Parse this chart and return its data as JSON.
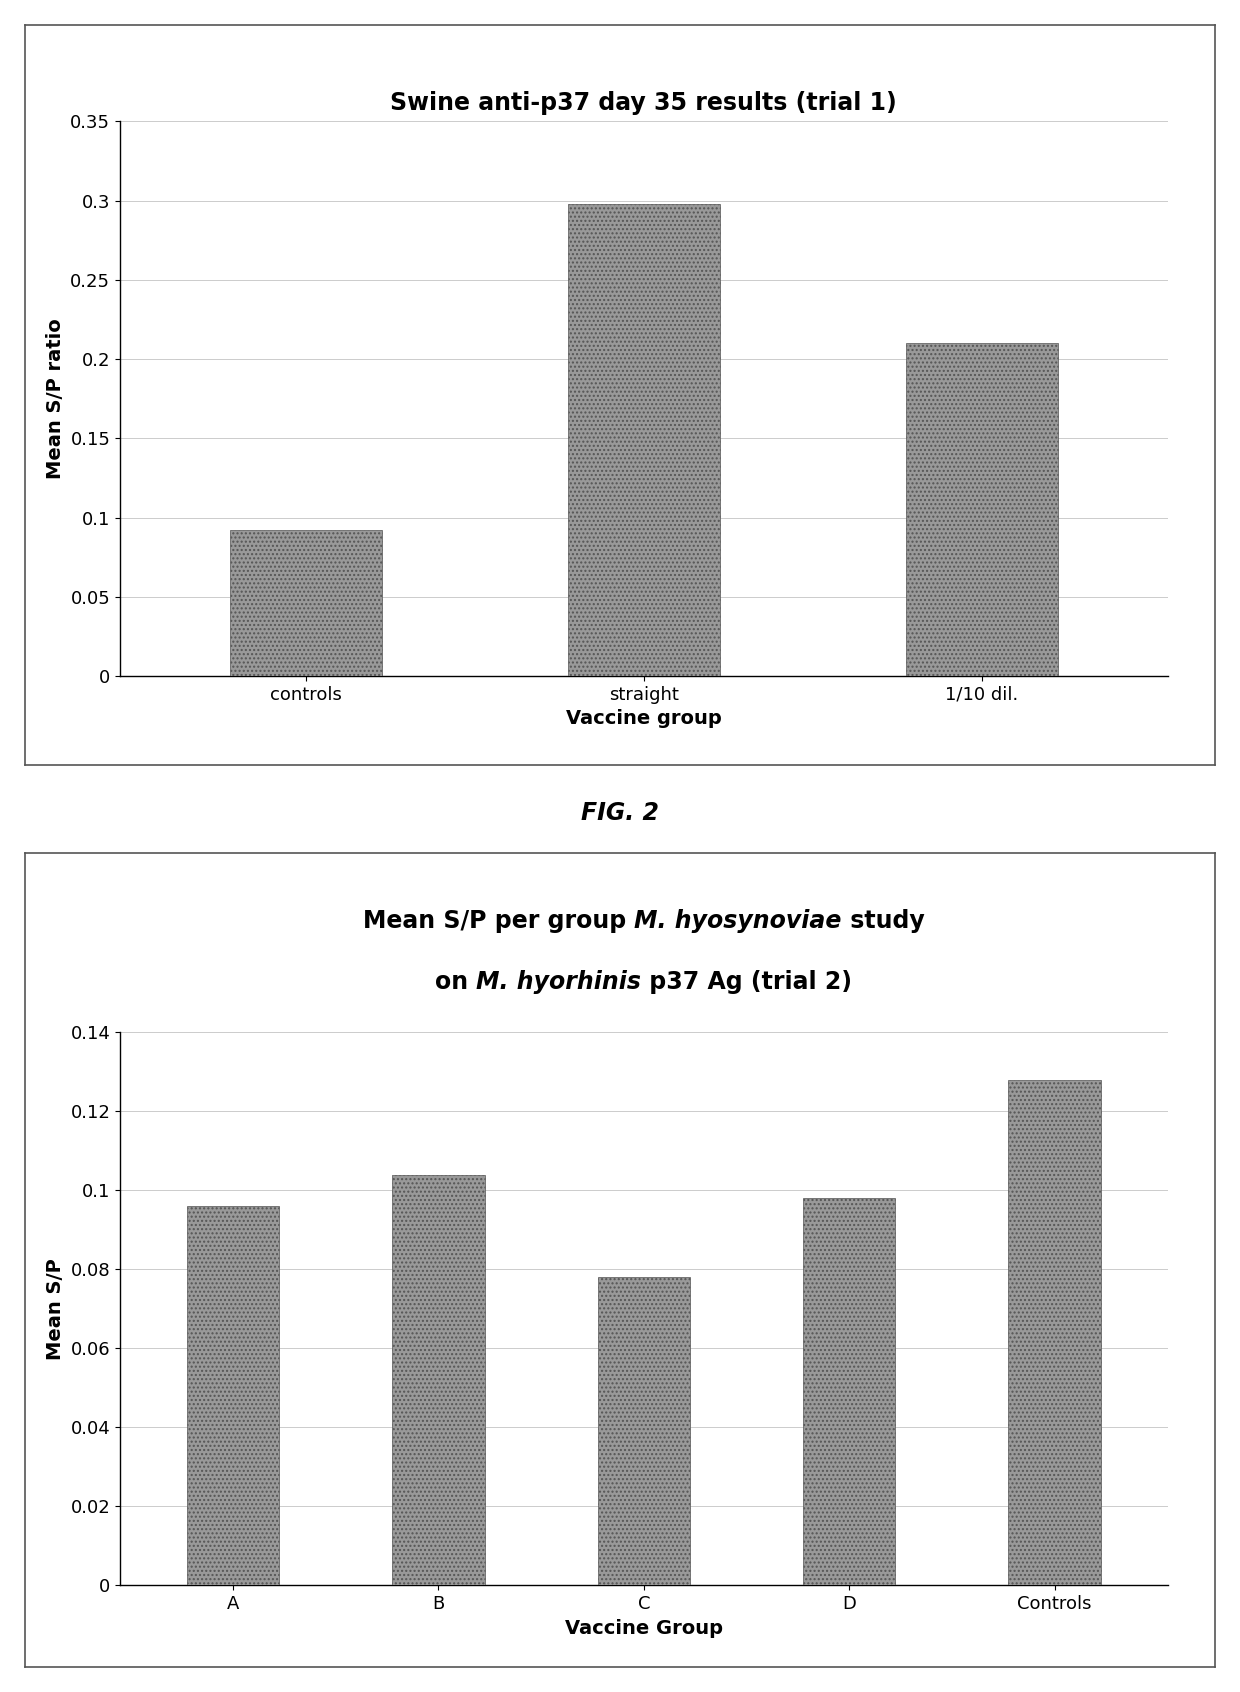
{
  "chart1": {
    "title": "Swine anti-p37 day 35 results (trial 1)",
    "categories": [
      "controls",
      "straight",
      "1/10 dil."
    ],
    "values": [
      0.092,
      0.298,
      0.21
    ],
    "ylabel": "Mean S/P ratio",
    "xlabel": "Vaccine group",
    "ylim": [
      0,
      0.35
    ],
    "yticks": [
      0,
      0.05,
      0.1,
      0.15,
      0.2,
      0.25,
      0.3,
      0.35
    ],
    "ytick_labels": [
      "0",
      "0.05",
      "0.1",
      "0.15",
      "0.2",
      "0.25",
      "0.3",
      "0.35"
    ],
    "bar_color": "#999999",
    "bar_hatch": "....",
    "bar_width": 0.45,
    "title_fontsize": 17,
    "label_fontsize": 14,
    "tick_fontsize": 13
  },
  "chart2": {
    "categories": [
      "A",
      "B",
      "C",
      "D",
      "Controls"
    ],
    "values": [
      0.096,
      0.104,
      0.078,
      0.098,
      0.128
    ],
    "ylabel": "Mean S/P",
    "xlabel": "Vaccine Group",
    "ylim": [
      0,
      0.14
    ],
    "yticks": [
      0,
      0.02,
      0.04,
      0.06,
      0.08,
      0.1,
      0.12,
      0.14
    ],
    "ytick_labels": [
      "0",
      "0.02",
      "0.04",
      "0.06",
      "0.08",
      "0.1",
      "0.12",
      "0.14"
    ],
    "bar_color": "#999999",
    "bar_hatch": "....",
    "bar_width": 0.45,
    "title_fontsize": 17,
    "label_fontsize": 14,
    "tick_fontsize": 13
  },
  "fig2_label": "FIG. 2",
  "background_color": "#ffffff",
  "grid_color": "#cccccc",
  "grid_style": "-",
  "bar_edge_color": "#555555"
}
